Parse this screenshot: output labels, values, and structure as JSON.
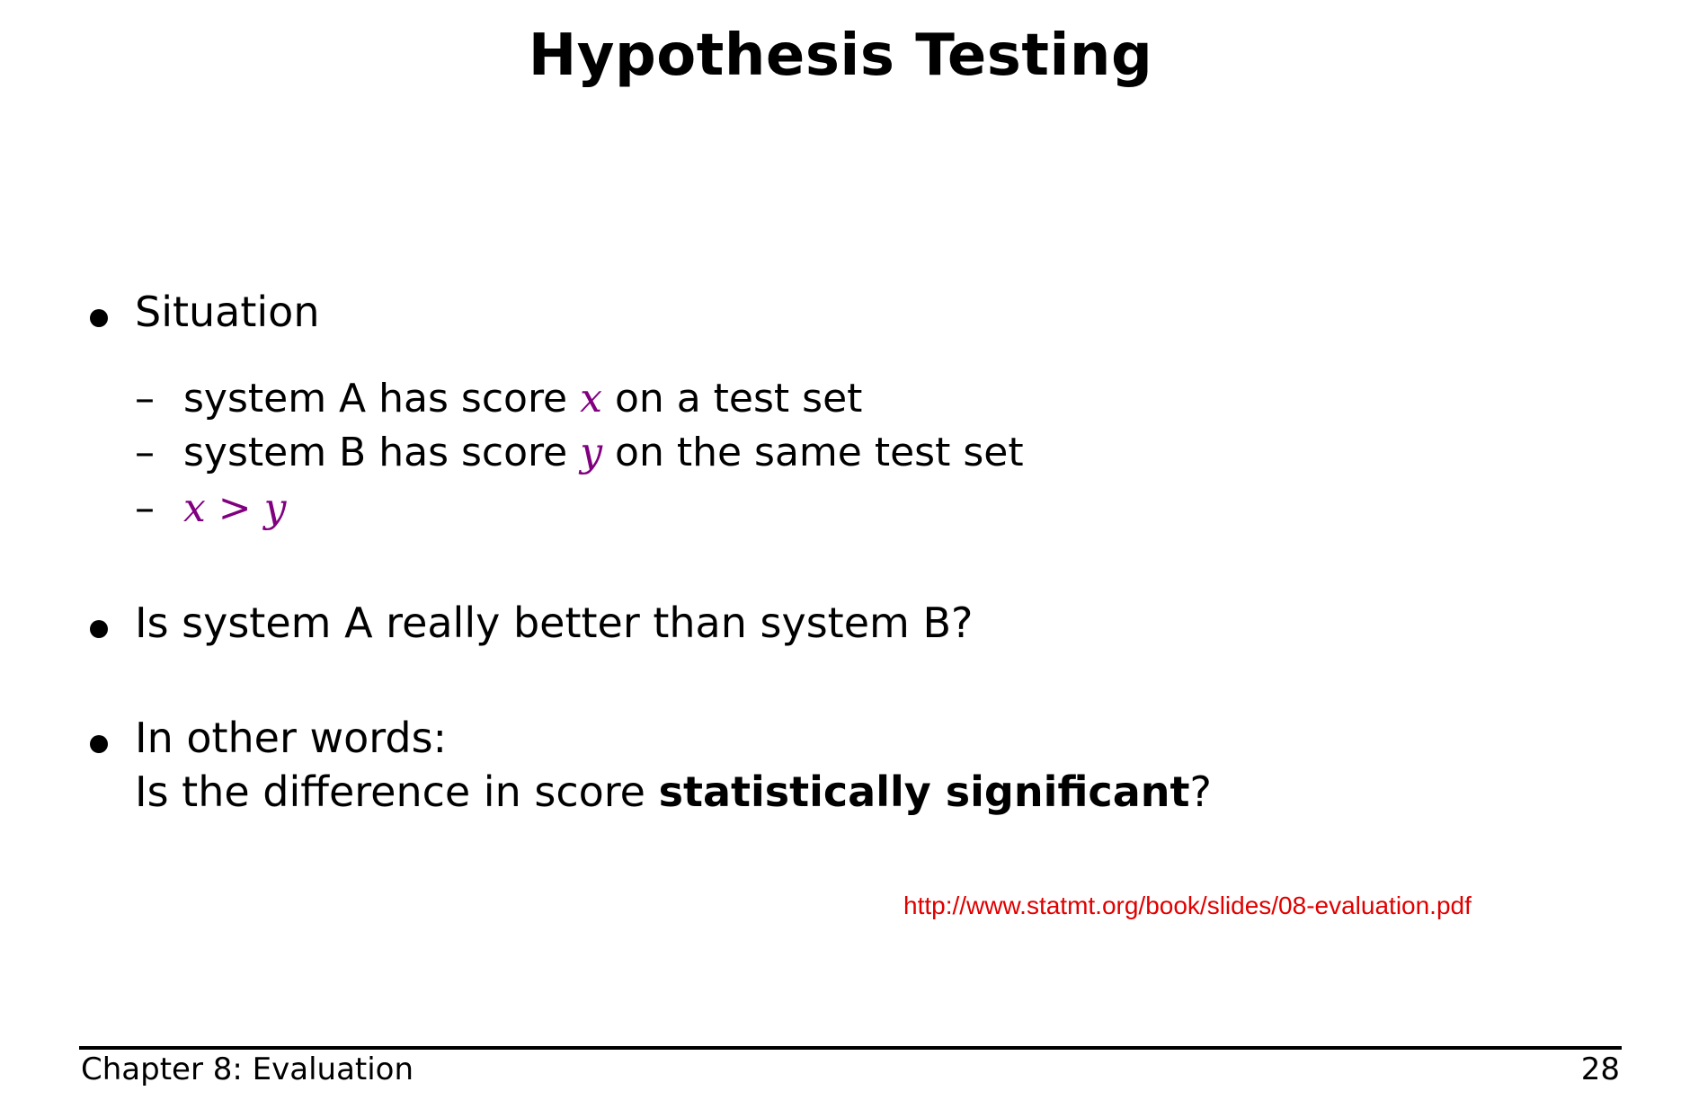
{
  "slide": {
    "title": "Hypothesis Testing",
    "bullets": [
      {
        "text": "Situation",
        "sub_items": [
          {
            "prefix": "system A has score ",
            "math": "x",
            "suffix": " on a test set"
          },
          {
            "prefix": "system B has score ",
            "math": "y",
            "suffix": " on the same test set"
          },
          {
            "prefix": "",
            "math": "x > y",
            "suffix": ""
          }
        ]
      },
      {
        "text": "Is system A really better than system B?"
      },
      {
        "line1": "In other words:",
        "line2_prefix": "Is the difference in score ",
        "line2_bold": "statistically significant",
        "line2_suffix": "?"
      }
    ],
    "source_link": "http://www.statmt.org/book/slides/08-evaluation.pdf"
  },
  "footer": {
    "chapter": "Chapter 8: Evaluation",
    "page_number": "28"
  },
  "colors": {
    "math_accent": "#800080",
    "link": "#e00000",
    "text": "#000000"
  }
}
